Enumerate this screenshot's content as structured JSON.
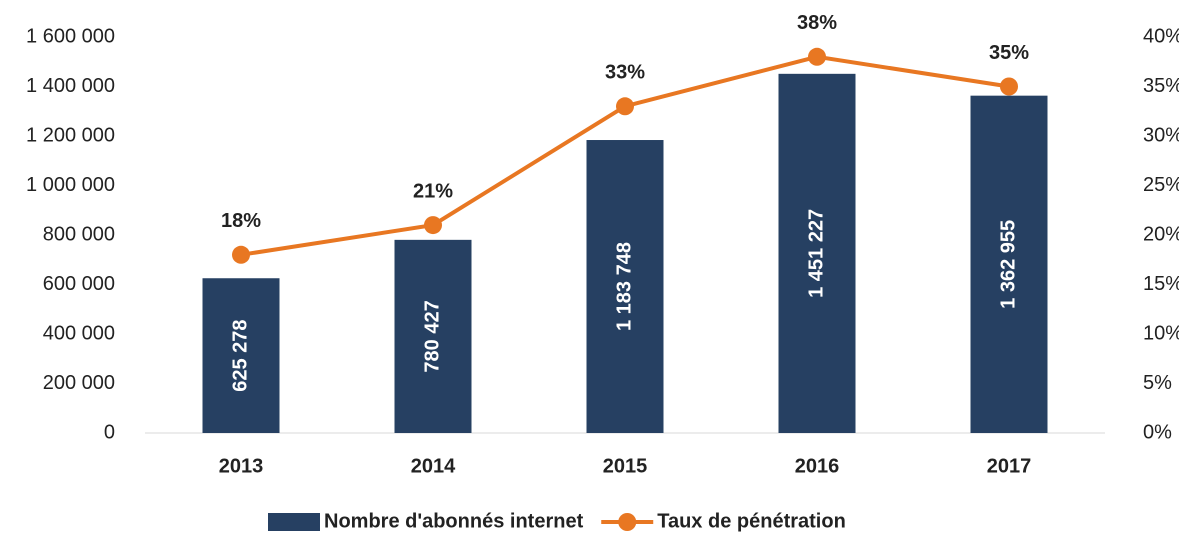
{
  "chart_data": {
    "type": "bar",
    "categories": [
      "2013",
      "2014",
      "2015",
      "2016",
      "2017"
    ],
    "series": [
      {
        "name": "Nombre d'abonnés internet",
        "type": "bar",
        "color": "#264062",
        "values": [
          625278,
          780427,
          1183748,
          1451227,
          1362955
        ],
        "value_labels": [
          "625 278",
          "780 427",
          "1 183 748",
          "1 451 227",
          "1 362 955"
        ]
      },
      {
        "name": "Taux de pénétration",
        "type": "line",
        "axis": "y2",
        "color": "#e87722",
        "values": [
          18,
          21,
          33,
          38,
          35
        ],
        "value_labels": [
          "18%",
          "21%",
          "33%",
          "38%",
          "35%"
        ]
      }
    ],
    "ylim": [
      0,
      1600000
    ],
    "yticks": [
      0,
      {
        "value": 200000,
        "label": "200 000"
      },
      {
        "value": 400000,
        "label": "400 000"
      },
      {
        "value": 600000,
        "label": "600 000"
      },
      {
        "value": 800000,
        "label": "800 000"
      },
      {
        "value": 1000000,
        "label": "1 000 000"
      },
      {
        "value": 1200000,
        "label": "1 200 000"
      },
      {
        "value": 1400000,
        "label": "1 400 000"
      },
      {
        "value": 1600000,
        "label": "1 600 000"
      }
    ],
    "y2lim": [
      0,
      40
    ],
    "y2ticks": [
      {
        "value": 0,
        "label": "0%"
      },
      {
        "value": 5,
        "label": "5%"
      },
      {
        "value": 10,
        "label": "10%"
      },
      {
        "value": 15,
        "label": "15%"
      },
      {
        "value": 20,
        "label": "20%"
      },
      {
        "value": 25,
        "label": "25%"
      },
      {
        "value": 30,
        "label": "30%"
      },
      {
        "value": 35,
        "label": "35%"
      },
      {
        "value": 40,
        "label": "40%"
      }
    ],
    "grid": false,
    "legend": "bottom"
  }
}
